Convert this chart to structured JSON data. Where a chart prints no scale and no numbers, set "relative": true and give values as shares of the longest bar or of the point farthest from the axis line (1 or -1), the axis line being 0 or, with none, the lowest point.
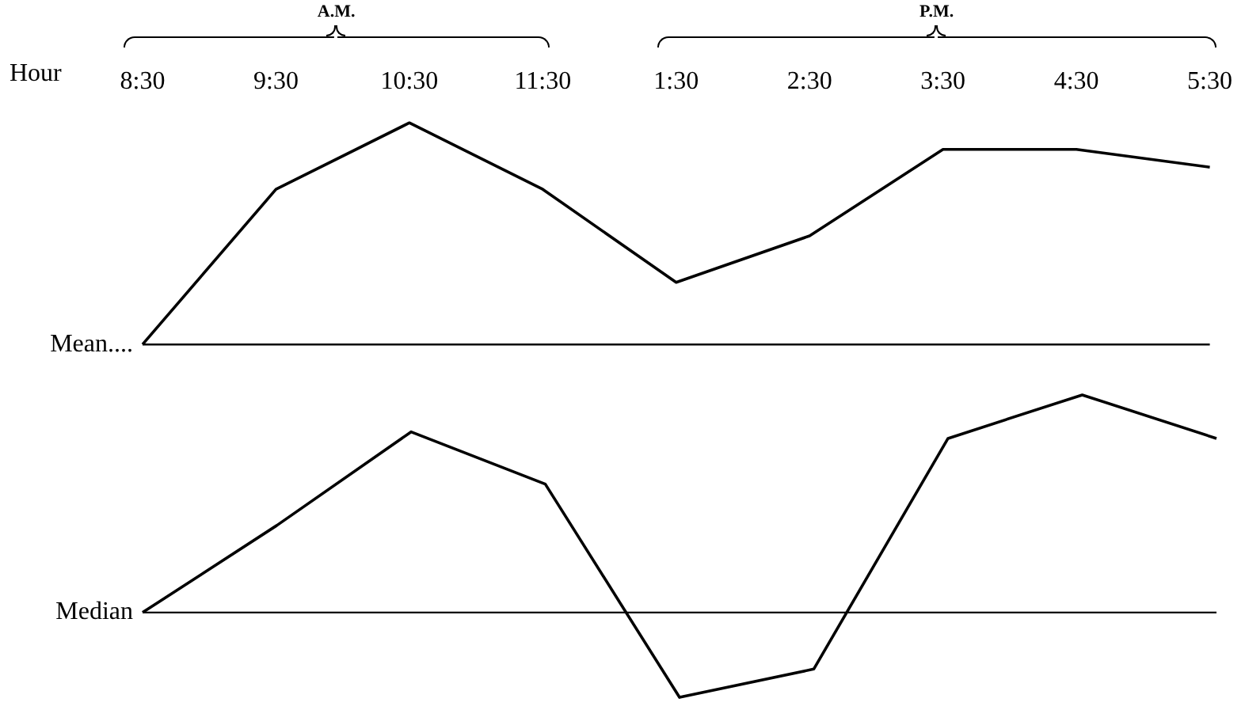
{
  "chart_data": [
    {
      "type": "line",
      "xlabel": "Hour",
      "categories": [
        "8:30",
        "9:30",
        "10:30",
        "11:30",
        "1:30",
        "2:30",
        "3:30",
        "4:30",
        "5:30"
      ],
      "relative": true,
      "series": [
        {
          "color": "#000000",
          "values": [
            0,
            0.7,
            1,
            0.7,
            0.28,
            0.49,
            0.88,
            0.88,
            0.8
          ]
        }
      ],
      "ref_lines": [
        {
          "axis": "y",
          "value": 0,
          "label": "Mean....",
          "color": "#000000"
        }
      ],
      "annotations": [
        "A.M.",
        "P.M."
      ],
      "legend": false,
      "grid": false,
      "marker": "none",
      "line_style": "solid"
    },
    {
      "type": "line",
      "categories": [
        null,
        null,
        null,
        null,
        null,
        null,
        null,
        null,
        null
      ],
      "relative": true,
      "tick_labels": false,
      "series": [
        {
          "color": "#000000",
          "values": [
            0,
            0.4,
            0.83,
            0.59,
            -0.39,
            -0.26,
            0.8,
            1,
            0.8
          ]
        }
      ],
      "ref_lines": [
        {
          "axis": "y",
          "value": 0,
          "label": "Median",
          "color": "#000000"
        }
      ],
      "legend": false,
      "grid": false,
      "marker": "none",
      "line_style": "solid"
    }
  ]
}
